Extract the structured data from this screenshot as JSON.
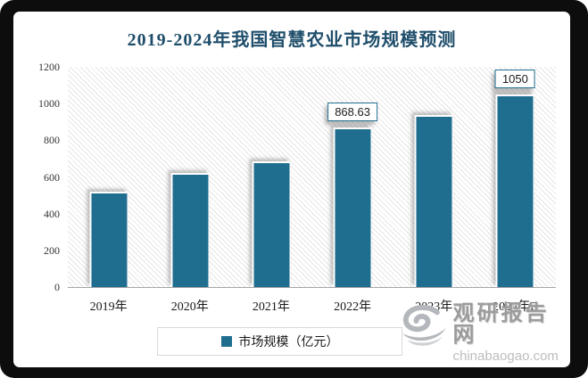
{
  "chart_data": {
    "type": "bar",
    "title": "2019-2024年我国智慧农业市场规模预测",
    "categories": [
      "2019年",
      "2020年",
      "2021年",
      "2022年",
      "2023年",
      "2024年E"
    ],
    "values": [
      520,
      620,
      685,
      868.63,
      940,
      1050
    ],
    "data_labels": [
      null,
      null,
      null,
      "868.63",
      null,
      "1050"
    ],
    "legend": [
      "市场规模（亿元）"
    ],
    "xlabel": "",
    "ylabel": "",
    "ylim": [
      0,
      1200
    ],
    "y_ticks": [
      0,
      200,
      400,
      600,
      800,
      1000,
      1200
    ],
    "grid": false,
    "legend_position": "bottom",
    "background_pattern": "diagonal-hatch"
  },
  "colors": {
    "bar": "#1F6E90",
    "title_text": "#1F4E6B",
    "data_label_border": "#1F6E90",
    "axis_line": "#A6A6A6",
    "watermark_gray": "#9C9C9C"
  },
  "watermark": {
    "site_name": "观研报告网",
    "site_url": "chinabaogao.com"
  }
}
